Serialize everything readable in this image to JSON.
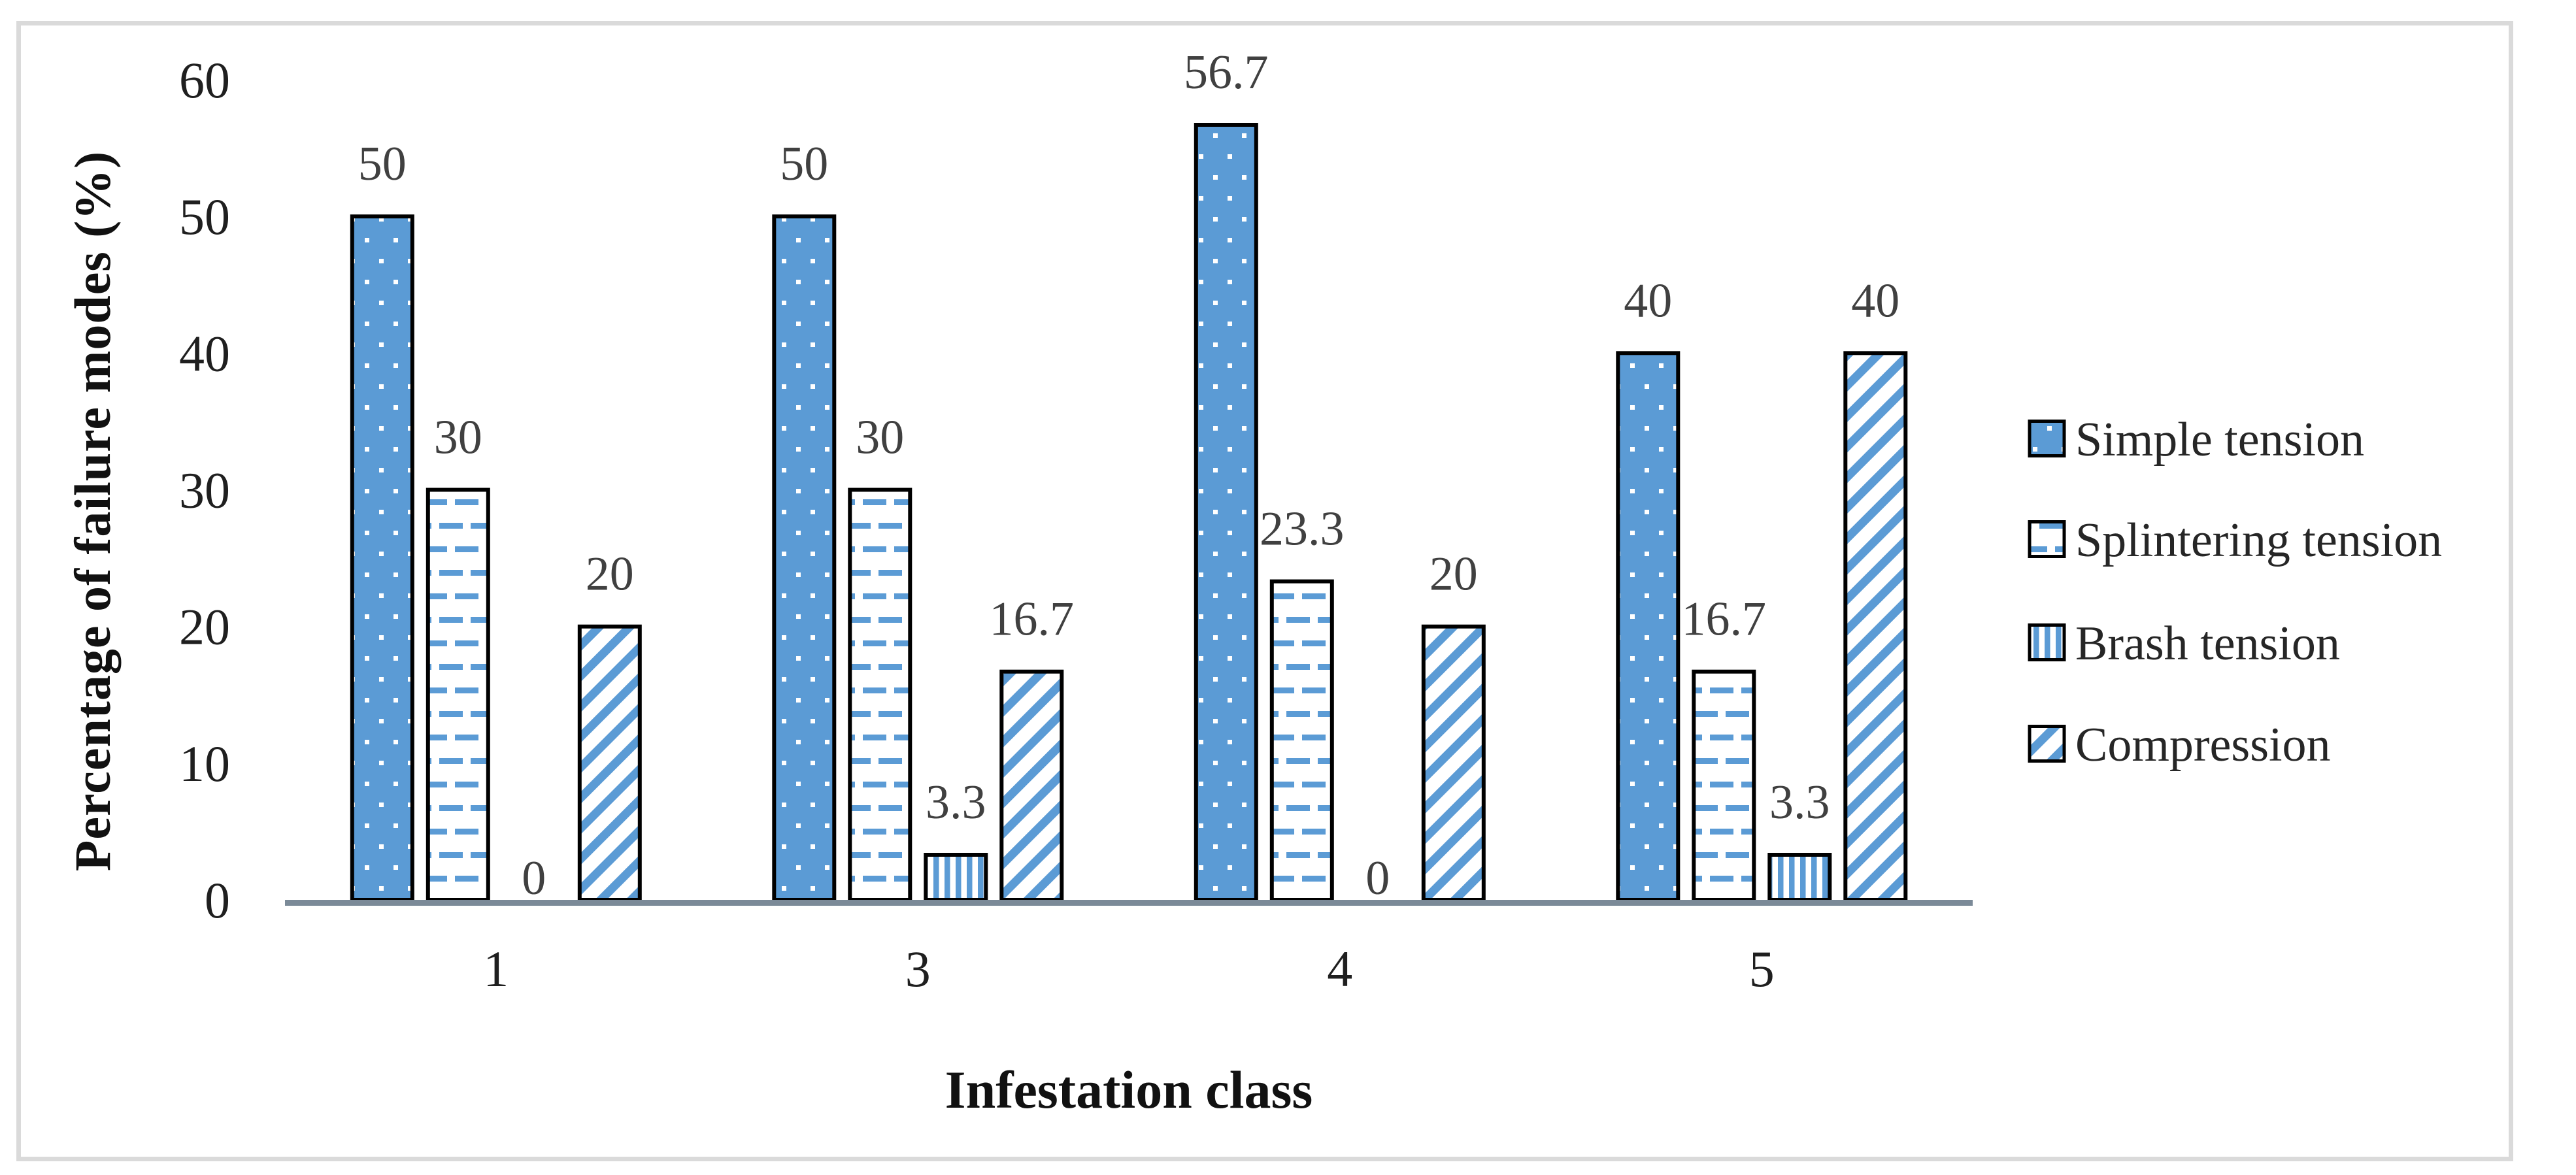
{
  "figure": {
    "background_color": "#ffffff",
    "frame_color": "#dadada"
  },
  "chart_data": {
    "type": "bar",
    "title": "",
    "xlabel": "Infestation class",
    "ylabel": "Percentage of failure modes (%)",
    "categories": [
      "1",
      "3",
      "4",
      "5"
    ],
    "series": [
      {
        "name": "Simple tension",
        "pattern": "dots",
        "values": [
          50,
          50,
          56.7,
          40
        ],
        "labels": [
          "50",
          "50",
          "56.7",
          "40"
        ]
      },
      {
        "name": "Splintering tension",
        "pattern": "dashes",
        "values": [
          30,
          30,
          23.3,
          16.7
        ],
        "labels": [
          "30",
          "30",
          "23.3",
          "16.7"
        ]
      },
      {
        "name": "Brash tension",
        "pattern": "vertical-stripes",
        "values": [
          0,
          3.3,
          0,
          3.3
        ],
        "labels": [
          "0",
          "3.3",
          "0",
          "3.3"
        ]
      },
      {
        "name": "Compression",
        "pattern": "diagonal-stripes",
        "values": [
          20,
          16.7,
          20,
          40
        ],
        "labels": [
          "20",
          "16.7",
          "20",
          "40"
        ]
      }
    ],
    "y_ticks": [
      "0",
      "10",
      "20",
      "30",
      "40",
      "50",
      "60"
    ],
    "ylim": [
      0,
      60
    ],
    "grid": false,
    "legend_position": "right",
    "colors": {
      "bar_blue": "#5b9bd5",
      "bar_border": "#000000",
      "axis_line": "#7b8a98",
      "data_label_text": "#404040",
      "axis_text": "#1f1f1f",
      "legend_text": "#262626",
      "pattern_background": "#ffffff"
    }
  }
}
